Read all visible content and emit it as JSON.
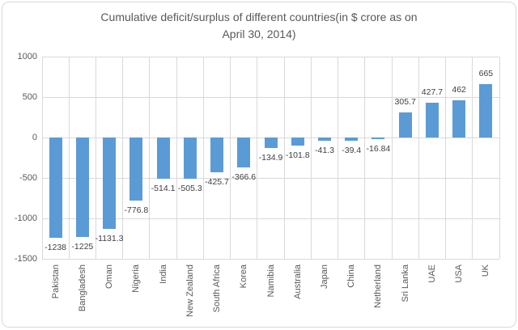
{
  "chart_title": {
    "line1": "Cumulative deficit/surplus of different countries(in $ crore as on",
    "line2": "April 30, 2014)",
    "full": "Cumulative deficit/surplus of different countries(in $ crore as on April 30, 2014)"
  },
  "chart_data": {
    "type": "bar",
    "title": "Cumulative deficit/surplus of different countries(in $ crore as on April 30, 2014)",
    "categories": [
      "Pakistan",
      "Bangladesh",
      "Oman",
      "Nigeria",
      "India",
      "New Zealand",
      "South Africa",
      "Korea",
      "Namibia",
      "Australia",
      "Japan",
      "China",
      "Netherland",
      "Sri Lanka",
      "UAE",
      "USA",
      "UK"
    ],
    "values": [
      -1238,
      -1225,
      -1131.3,
      -776.8,
      -514.1,
      -505.3,
      -425.7,
      -366.6,
      -134.9,
      -101.8,
      -41.3,
      -39.4,
      -16.84,
      305.7,
      427.7,
      462,
      665
    ],
    "value_labels": [
      "-1238",
      "-1225",
      "-1131.3",
      "-776.8",
      "-514.1",
      "-505.3",
      "-425.7",
      "-366.6",
      "-134.9",
      "-101.8",
      "-41.3",
      "-39.4",
      "-16.84",
      "305.7",
      "427.7",
      "462",
      "665"
    ],
    "xlabel": "",
    "ylabel": "",
    "ylim": [
      -1500,
      1000
    ],
    "yticks": [
      1000,
      500,
      0,
      -500,
      -1000,
      -1500
    ],
    "grid": true,
    "legend": "none",
    "bar_color": "#5b9bd5",
    "gridline_color": "#d9d9d9",
    "axis_text_color": "#595959",
    "value_label_color": "#404040",
    "title_color": "#595959",
    "background_color": "#ffffff",
    "border_color": "#d9d9d9"
  }
}
